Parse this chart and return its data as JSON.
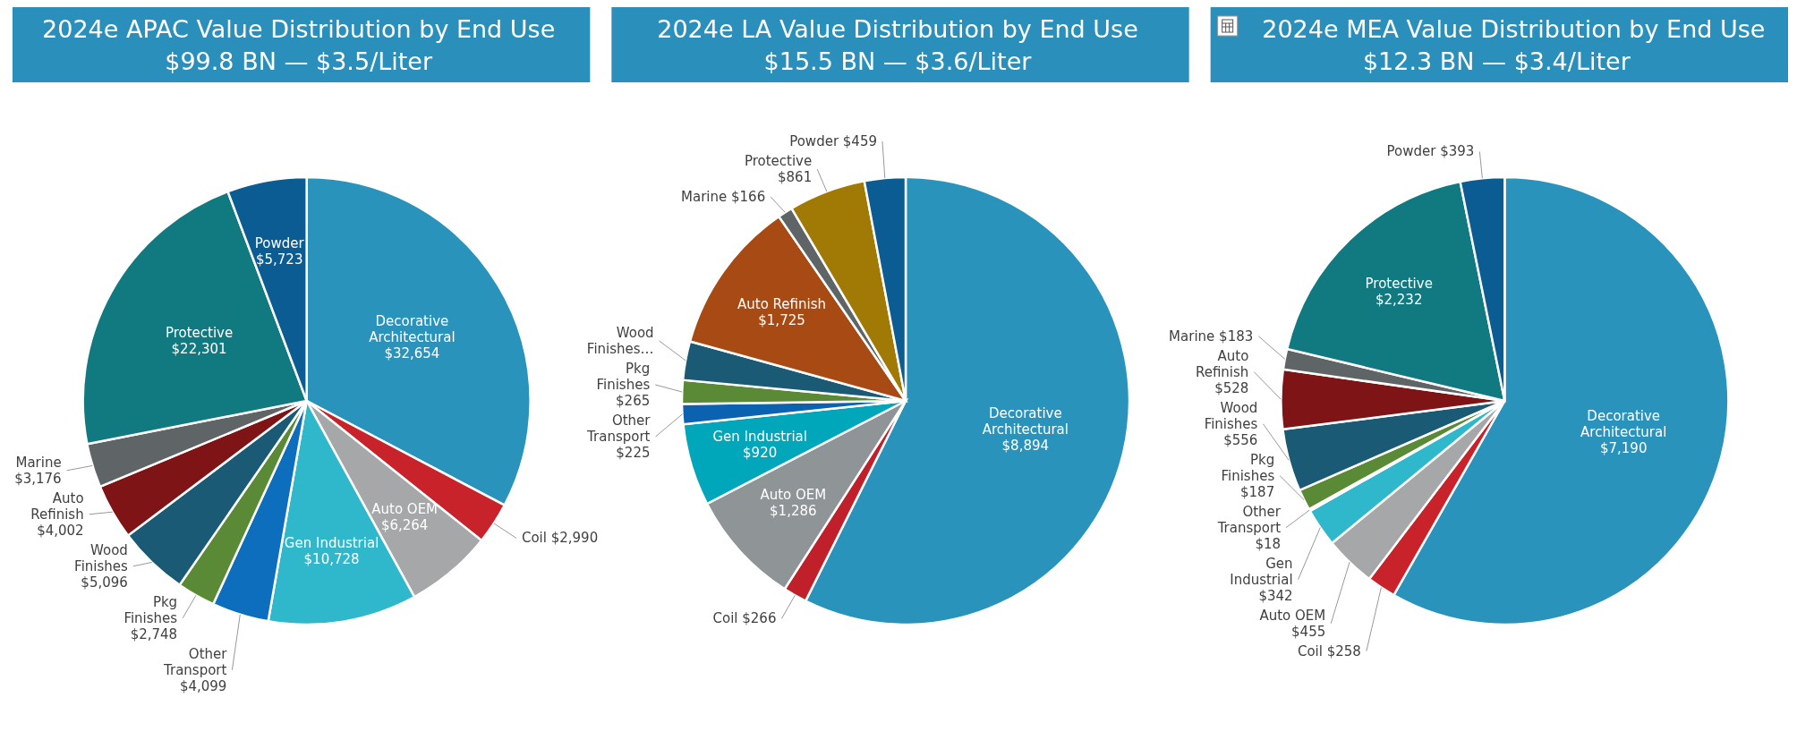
{
  "chart_data": [
    {
      "type": "pie",
      "title": "2024e APAC Value Distribution by End Use",
      "subtitle": "$99.8 BN — $3.5/Liter",
      "categories": [
        "Decorative Architectural",
        "Coil",
        "Auto OEM",
        "Gen Industrial",
        "Other Transport",
        "Pkg Finishes",
        "Wood Finishes",
        "Auto Refinish",
        "Marine",
        "Protective",
        "Powder"
      ],
      "values": [
        32654,
        2990,
        6264,
        10728,
        4099,
        2748,
        5096,
        4002,
        3176,
        22301,
        5723
      ],
      "value_labels": [
        "$32,654",
        "$2,990",
        "$6,264",
        "$10,728",
        "$4,099",
        "$2,748",
        "$5,096",
        "$4,002",
        "$3,176",
        "$22,301",
        "$5,723"
      ],
      "colors": [
        "#2a93bb",
        "#c8232b",
        "#a5a7a8",
        "#2fb8cb",
        "#0d6ebd",
        "#5a8a35",
        "#1a5a74",
        "#7e1416",
        "#5f6566",
        "#117a80",
        "#0c5c94"
      ]
    },
    {
      "type": "pie",
      "title": "2024e LA Value Distribution by End Use",
      "subtitle": "$15.5 BN — $3.6/Liter",
      "categories": [
        "Decorative Architectural",
        "Coil",
        "Auto OEM",
        "Gen Industrial",
        "Other Transport",
        "Pkg Finishes",
        "Wood Finishes…",
        "Auto Refinish",
        "Marine",
        "Protective",
        "Powder"
      ],
      "values": [
        8894,
        266,
        1286,
        920,
        225,
        265,
        433,
        1725,
        166,
        861,
        459
      ],
      "value_labels": [
        "$8,894",
        "$266",
        "$1,286",
        "$920",
        "$225",
        "$265",
        null,
        "$1,725",
        "$166",
        "$861",
        "$459"
      ],
      "colors": [
        "#2a93bb",
        "#c0202a",
        "#8f9496",
        "#00a7bb",
        "#0b62b0",
        "#5a8a35",
        "#1a5a74",
        "#a84a14",
        "#5f6566",
        "#a07a05",
        "#0c5c94"
      ]
    },
    {
      "type": "pie",
      "title": "2024e MEA Value Distribution by End Use",
      "subtitle": "$12.3 BN — $3.4/Liter",
      "categories": [
        "Decorative Architectural",
        "Coil",
        "Auto OEM",
        "Gen Industrial",
        "Other Transport",
        "Pkg Finishes",
        "Wood Finishes",
        "Auto Refinish",
        "Marine",
        "Protective",
        "Powder"
      ],
      "values": [
        7190,
        258,
        455,
        342,
        18,
        187,
        556,
        528,
        183,
        2232,
        393
      ],
      "value_labels": [
        "$7,190",
        "$258",
        "$455",
        "$342",
        "$18",
        "$187",
        "$556",
        "$528",
        "$183",
        "$2,232",
        "$393"
      ],
      "colors": [
        "#2a93bb",
        "#c8232b",
        "#a5a7a8",
        "#2fb8cb",
        "#0d6ebd",
        "#5a8a35",
        "#1a5a74",
        "#7e1416",
        "#5f6566",
        "#117a80",
        "#0c5c94"
      ]
    }
  ]
}
